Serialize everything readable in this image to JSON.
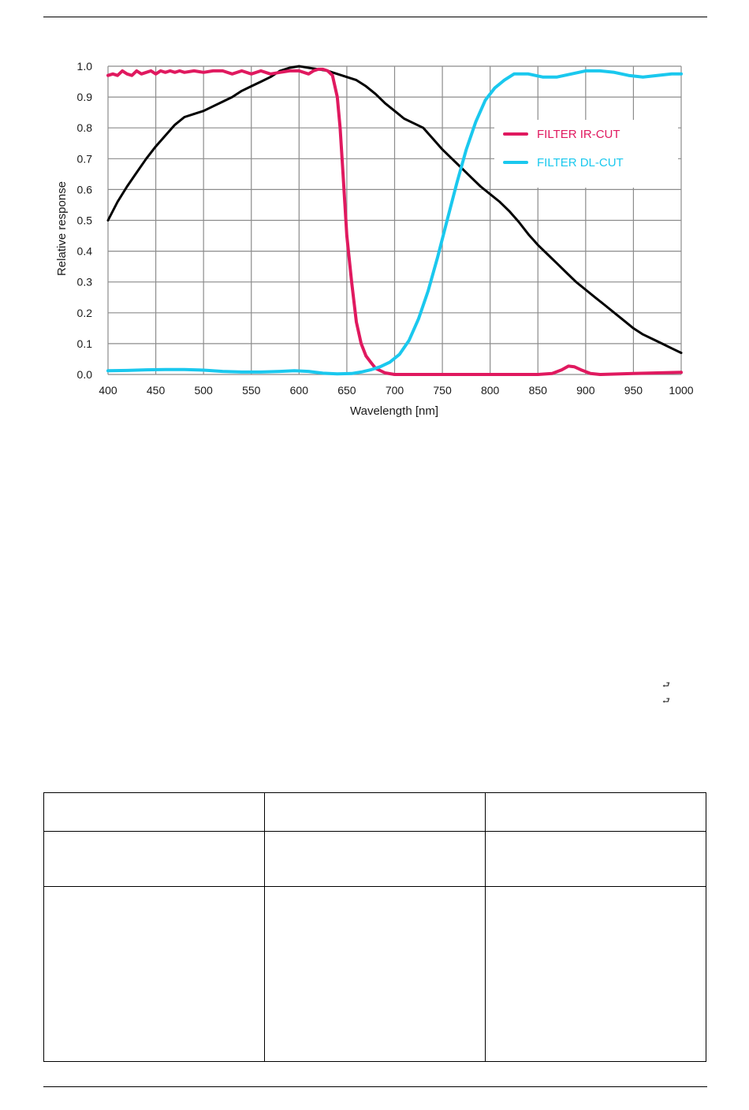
{
  "chart_data": {
    "type": "line",
    "title": "",
    "xlabel": "Wavelength [nm]",
    "ylabel": "Relative response",
    "xlim": [
      400,
      1000
    ],
    "ylim": [
      0,
      1.0
    ],
    "x_ticks": [
      "400",
      "450",
      "500",
      "550",
      "600",
      "650",
      "700",
      "750",
      "800",
      "850",
      "900",
      "950",
      "1000"
    ],
    "y_ticks": [
      "0.0",
      "0.1",
      "0.2",
      "0.3",
      "0.4",
      "0.5",
      "0.6",
      "0.7",
      "0.8",
      "0.9",
      "1.0"
    ],
    "grid": true,
    "legend_position": "top-right",
    "series": [
      {
        "name": "",
        "color": "#000000",
        "points": [
          [
            400,
            0.5
          ],
          [
            410,
            0.56
          ],
          [
            420,
            0.61
          ],
          [
            430,
            0.655
          ],
          [
            440,
            0.7
          ],
          [
            450,
            0.74
          ],
          [
            460,
            0.775
          ],
          [
            470,
            0.81
          ],
          [
            480,
            0.835
          ],
          [
            490,
            0.845
          ],
          [
            500,
            0.855
          ],
          [
            510,
            0.87
          ],
          [
            520,
            0.885
          ],
          [
            530,
            0.9
          ],
          [
            540,
            0.92
          ],
          [
            550,
            0.935
          ],
          [
            560,
            0.95
          ],
          [
            570,
            0.965
          ],
          [
            580,
            0.985
          ],
          [
            590,
            0.995
          ],
          [
            600,
            1.0
          ],
          [
            610,
            0.995
          ],
          [
            620,
            0.99
          ],
          [
            630,
            0.985
          ],
          [
            640,
            0.975
          ],
          [
            650,
            0.965
          ],
          [
            660,
            0.955
          ],
          [
            670,
            0.935
          ],
          [
            680,
            0.91
          ],
          [
            690,
            0.88
          ],
          [
            700,
            0.855
          ],
          [
            710,
            0.83
          ],
          [
            720,
            0.815
          ],
          [
            730,
            0.8
          ],
          [
            740,
            0.765
          ],
          [
            750,
            0.73
          ],
          [
            760,
            0.7
          ],
          [
            770,
            0.67
          ],
          [
            780,
            0.64
          ],
          [
            790,
            0.61
          ],
          [
            800,
            0.585
          ],
          [
            810,
            0.56
          ],
          [
            820,
            0.53
          ],
          [
            830,
            0.495
          ],
          [
            840,
            0.455
          ],
          [
            850,
            0.42
          ],
          [
            860,
            0.39
          ],
          [
            870,
            0.36
          ],
          [
            880,
            0.33
          ],
          [
            890,
            0.3
          ],
          [
            900,
            0.275
          ],
          [
            910,
            0.25
          ],
          [
            920,
            0.225
          ],
          [
            930,
            0.2
          ],
          [
            940,
            0.175
          ],
          [
            950,
            0.15
          ],
          [
            960,
            0.13
          ],
          [
            970,
            0.115
          ],
          [
            980,
            0.1
          ],
          [
            990,
            0.085
          ],
          [
            1000,
            0.07
          ]
        ]
      },
      {
        "name": "FILTER IR-CUT",
        "color": "#e0195f",
        "points": [
          [
            400,
            0.97
          ],
          [
            405,
            0.975
          ],
          [
            410,
            0.97
          ],
          [
            415,
            0.985
          ],
          [
            420,
            0.975
          ],
          [
            425,
            0.97
          ],
          [
            430,
            0.985
          ],
          [
            435,
            0.975
          ],
          [
            440,
            0.98
          ],
          [
            445,
            0.985
          ],
          [
            450,
            0.975
          ],
          [
            455,
            0.985
          ],
          [
            460,
            0.98
          ],
          [
            465,
            0.985
          ],
          [
            470,
            0.98
          ],
          [
            475,
            0.985
          ],
          [
            480,
            0.98
          ],
          [
            490,
            0.985
          ],
          [
            500,
            0.98
          ],
          [
            510,
            0.985
          ],
          [
            520,
            0.985
          ],
          [
            530,
            0.975
          ],
          [
            540,
            0.985
          ],
          [
            550,
            0.975
          ],
          [
            560,
            0.985
          ],
          [
            570,
            0.975
          ],
          [
            580,
            0.98
          ],
          [
            590,
            0.985
          ],
          [
            600,
            0.985
          ],
          [
            610,
            0.975
          ],
          [
            615,
            0.985
          ],
          [
            620,
            0.99
          ],
          [
            625,
            0.99
          ],
          [
            630,
            0.985
          ],
          [
            635,
            0.97
          ],
          [
            640,
            0.9
          ],
          [
            643,
            0.8
          ],
          [
            646,
            0.65
          ],
          [
            650,
            0.45
          ],
          [
            655,
            0.3
          ],
          [
            660,
            0.17
          ],
          [
            665,
            0.1
          ],
          [
            670,
            0.06
          ],
          [
            675,
            0.04
          ],
          [
            680,
            0.02
          ],
          [
            690,
            0.005
          ],
          [
            700,
            0.0
          ],
          [
            750,
            0.0
          ],
          [
            800,
            0.0
          ],
          [
            850,
            0.0
          ],
          [
            865,
            0.003
          ],
          [
            875,
            0.015
          ],
          [
            882,
            0.027
          ],
          [
            888,
            0.025
          ],
          [
            895,
            0.015
          ],
          [
            905,
            0.003
          ],
          [
            915,
            0.0
          ],
          [
            950,
            0.003
          ],
          [
            1000,
            0.007
          ]
        ]
      },
      {
        "name": "FILTER DL-CUT",
        "color": "#1ac8ee",
        "points": [
          [
            400,
            0.012
          ],
          [
            420,
            0.013
          ],
          [
            440,
            0.015
          ],
          [
            460,
            0.016
          ],
          [
            480,
            0.016
          ],
          [
            500,
            0.014
          ],
          [
            520,
            0.01
          ],
          [
            540,
            0.008
          ],
          [
            560,
            0.008
          ],
          [
            580,
            0.01
          ],
          [
            595,
            0.012
          ],
          [
            610,
            0.01
          ],
          [
            625,
            0.004
          ],
          [
            640,
            0.002
          ],
          [
            655,
            0.003
          ],
          [
            665,
            0.008
          ],
          [
            675,
            0.015
          ],
          [
            685,
            0.025
          ],
          [
            695,
            0.04
          ],
          [
            705,
            0.065
          ],
          [
            715,
            0.11
          ],
          [
            725,
            0.18
          ],
          [
            735,
            0.27
          ],
          [
            745,
            0.38
          ],
          [
            755,
            0.5
          ],
          [
            765,
            0.62
          ],
          [
            775,
            0.73
          ],
          [
            785,
            0.82
          ],
          [
            795,
            0.89
          ],
          [
            805,
            0.93
          ],
          [
            815,
            0.955
          ],
          [
            825,
            0.975
          ],
          [
            840,
            0.975
          ],
          [
            855,
            0.965
          ],
          [
            870,
            0.965
          ],
          [
            885,
            0.975
          ],
          [
            900,
            0.985
          ],
          [
            915,
            0.985
          ],
          [
            930,
            0.98
          ],
          [
            945,
            0.97
          ],
          [
            960,
            0.965
          ],
          [
            975,
            0.97
          ],
          [
            990,
            0.975
          ],
          [
            1000,
            0.975
          ]
        ]
      }
    ]
  },
  "glyphs": {
    "return_1": "⮐",
    "return_2": "⮐"
  }
}
